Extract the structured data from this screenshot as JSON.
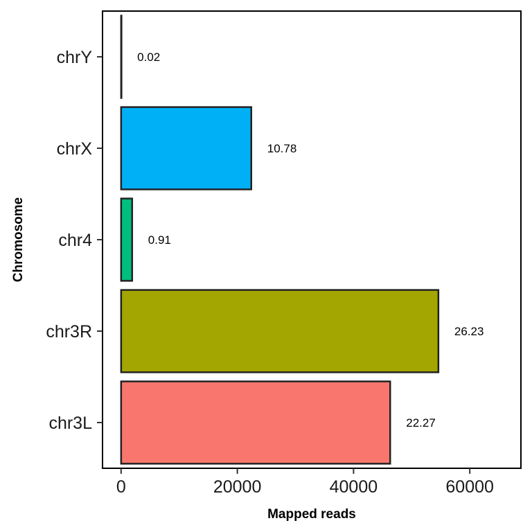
{
  "chart_data": {
    "type": "bar",
    "orientation": "horizontal",
    "categories": [
      "chr3L",
      "chr3R",
      "chr4",
      "chrX",
      "chrY"
    ],
    "values": [
      46300,
      54600,
      1900,
      22400,
      40
    ],
    "data_labels": [
      "22.27",
      "26.23",
      "0.91",
      "10.78",
      "0.02"
    ],
    "colors": [
      "#F8766D",
      "#A3A500",
      "#00BF7D",
      "#00B0F6",
      "#E76BF3"
    ],
    "xlabel": "Mapped reads",
    "ylabel": "Chromosome",
    "xlim": [
      -3200,
      68800
    ],
    "xticks": [
      0,
      20000,
      40000,
      60000
    ],
    "xtick_labels": [
      "0",
      "20000",
      "40000",
      "60000"
    ],
    "grid": false,
    "legend": "none"
  }
}
